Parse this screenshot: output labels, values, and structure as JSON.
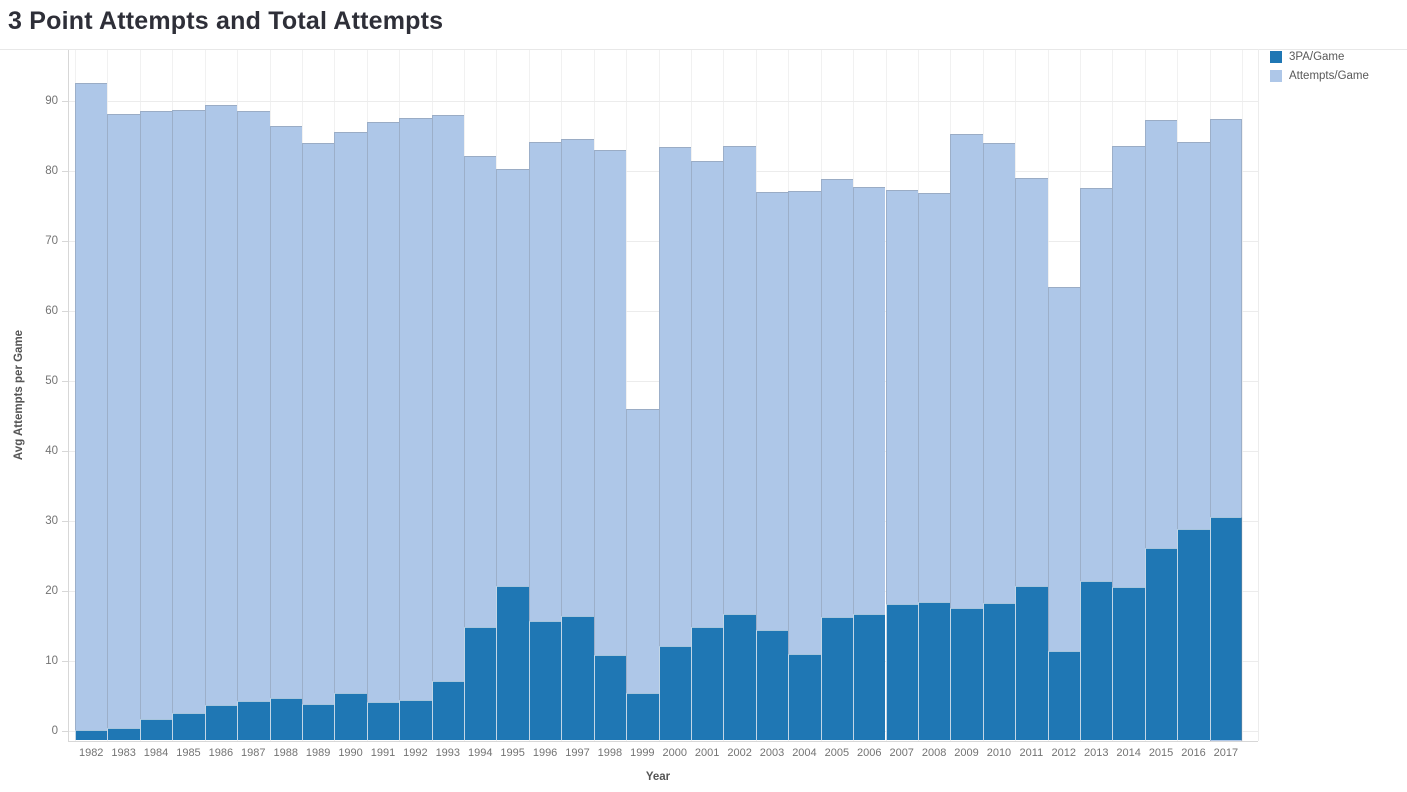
{
  "title": "3 Point Attempts and Total Attempts",
  "axes": {
    "x_label": "Year",
    "y_label": "Avg Attempts per Game"
  },
  "legend": {
    "position": "top-right",
    "items": [
      {
        "label": "3PA/Game",
        "color": "#1f77b4"
      },
      {
        "label": "Attempts/Game",
        "color": "#aec7e8"
      }
    ]
  },
  "chart_data": {
    "type": "bar",
    "bar_mode": "overlay",
    "title": "3 Point Attempts and Total Attempts",
    "xlabel": "Year",
    "ylabel": "Avg Attempts per Game",
    "grid": true,
    "legend_position": "top-right",
    "ylim": [
      -1.4,
      97.4
    ],
    "yticks": [
      0,
      10,
      20,
      30,
      40,
      50,
      60,
      70,
      80,
      90
    ],
    "categories": [
      1982,
      1983,
      1984,
      1985,
      1986,
      1987,
      1988,
      1989,
      1990,
      1991,
      1992,
      1993,
      1994,
      1995,
      1996,
      1997,
      1998,
      1999,
      2000,
      2001,
      2002,
      2003,
      2004,
      2005,
      2006,
      2007,
      2008,
      2009,
      2010,
      2011,
      2012,
      2013,
      2014,
      2015,
      2016,
      2017
    ],
    "series": [
      {
        "name": "Attempts/Game",
        "color": "#aec7e8",
        "values": [
          92.6,
          88.2,
          88.6,
          88.8,
          89.5,
          88.7,
          86.5,
          84.1,
          85.6,
          87.1,
          87.7,
          88.1,
          82.2,
          80.3,
          84.2,
          84.7,
          83.1,
          46.0,
          83.5,
          81.5,
          83.7,
          77.0,
          77.2,
          78.9,
          77.7,
          77.3,
          76.9,
          85.4,
          84.1,
          79.0,
          63.5,
          77.6,
          83.6,
          87.3,
          84.2,
          87.5
        ]
      },
      {
        "name": "3PA/Game",
        "color": "#1f77b4",
        "values": [
          0.2,
          0.4,
          1.7,
          2.6,
          3.7,
          4.3,
          4.7,
          3.9,
          5.5,
          4.2,
          4.5,
          7.2,
          14.8,
          20.7,
          15.7,
          16.4,
          10.9,
          5.5,
          12.1,
          14.8,
          16.7,
          14.5,
          11.0,
          16.3,
          16.7,
          18.2,
          18.4,
          17.6,
          18.3,
          20.8,
          11.5,
          21.4,
          20.6,
          26.2,
          28.9,
          30.6
        ]
      }
    ]
  }
}
